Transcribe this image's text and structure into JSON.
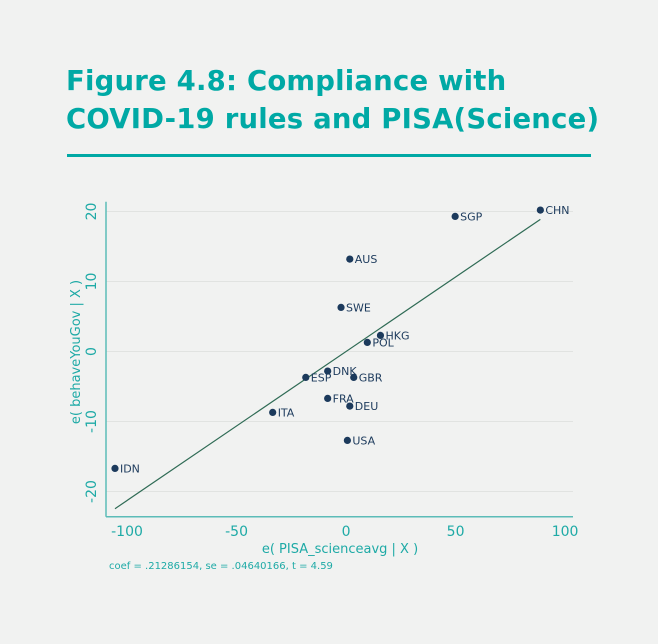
{
  "title_line1": "Figure 4.8: Compliance with",
  "title_line2": "COVID-19 rules and PISA(Science)",
  "colors": {
    "accent": "#00a9a5",
    "points": "#1c3a5c",
    "fit_line": "#2f6b55",
    "grid": "#e1e3e1"
  },
  "chart_data": {
    "type": "scatter",
    "xlabel": "e( PISA_scienceavg | X )",
    "ylabel": "e( behaveYouGov | X )",
    "note": "coef = .21286154, se = .04640166, t = 4.59",
    "xlim": [
      -109.6,
      103.6
    ],
    "ylim": [
      -23.6,
      21.4
    ],
    "xticks": [
      -100,
      -50,
      0,
      50,
      100
    ],
    "yticks": [
      -20,
      -10,
      0,
      10,
      20
    ],
    "grid": true,
    "points": [
      {
        "label": "CHN",
        "x": 88.7,
        "y": 20.2
      },
      {
        "label": "SGP",
        "x": 49.8,
        "y": 19.3
      },
      {
        "label": "AUS",
        "x": 1.7,
        "y": 13.2
      },
      {
        "label": "SWE",
        "x": -2.3,
        "y": 6.3
      },
      {
        "label": "HKG",
        "x": 15.7,
        "y": 2.3
      },
      {
        "label": "POL",
        "x": 9.7,
        "y": 1.3
      },
      {
        "label": "DNK",
        "x": -8.4,
        "y": -2.8
      },
      {
        "label": "ESP",
        "x": -18.4,
        "y": -3.7
      },
      {
        "label": "GBR",
        "x": 3.5,
        "y": -3.7
      },
      {
        "label": "FRA",
        "x": -8.4,
        "y": -6.7
      },
      {
        "label": "DEU",
        "x": 1.7,
        "y": -7.8
      },
      {
        "label": "ITA",
        "x": -33.5,
        "y": -8.7
      },
      {
        "label": "USA",
        "x": 0.6,
        "y": -12.7
      },
      {
        "label": "IDN",
        "x": -105.5,
        "y": -16.7
      }
    ],
    "fit_line": {
      "slope": 0.21286154,
      "intercept": 0,
      "x_range": [
        -105.5,
        88.7
      ]
    }
  }
}
